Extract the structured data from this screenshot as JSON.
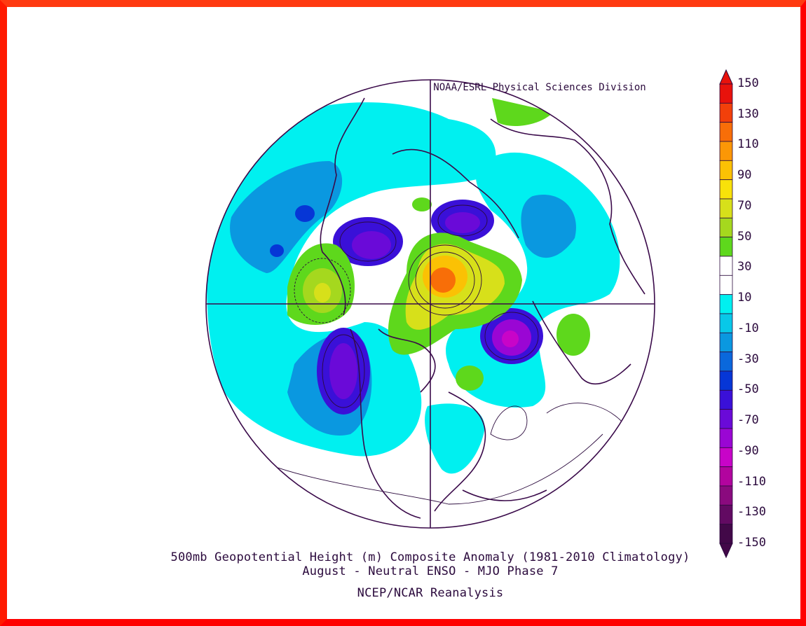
{
  "map": {
    "organization": "NOAA/ESRL Physical Sciences Division",
    "caption_line1": "500mb Geopotential Height (m) Composite Anomaly (1981-2010 Climatology)",
    "caption_line2": "August - Neutral ENSO - MJO Phase 7",
    "caption_line3": "NCEP/NCAR Reanalysis",
    "projection": "north-polar-stereographic",
    "colors": {
      "frame": "#ff0000",
      "coastline": "#3a0a4a",
      "contour": "#2b0a3d"
    }
  },
  "colorbar": {
    "labels": [
      "150",
      "130",
      "110",
      "90",
      "70",
      "50",
      "30",
      "10",
      "-10",
      "-30",
      "-50",
      "-70",
      "-90",
      "-110",
      "-130",
      "-150"
    ],
    "bins": [
      {
        "color": "#e8120c"
      },
      {
        "color": "#f2400a"
      },
      {
        "color": "#f86e08"
      },
      {
        "color": "#fb9706"
      },
      {
        "color": "#fbc104"
      },
      {
        "color": "#f8e20a"
      },
      {
        "color": "#d7e01a"
      },
      {
        "color": "#a5d81e"
      },
      {
        "color": "#5ed81c"
      },
      {
        "color": "#ffffff"
      },
      {
        "color": "#ffffff"
      },
      {
        "color": "#00f0f0"
      },
      {
        "color": "#08c8e8"
      },
      {
        "color": "#0a98e0"
      },
      {
        "color": "#0a68dc"
      },
      {
        "color": "#0636d6"
      },
      {
        "color": "#3a10d8"
      },
      {
        "color": "#6a0ad8"
      },
      {
        "color": "#9a06d4"
      },
      {
        "color": "#c804c8"
      },
      {
        "color": "#b2049e"
      },
      {
        "color": "#8a0a7e"
      },
      {
        "color": "#620a62"
      },
      {
        "color": "#420848"
      }
    ]
  }
}
